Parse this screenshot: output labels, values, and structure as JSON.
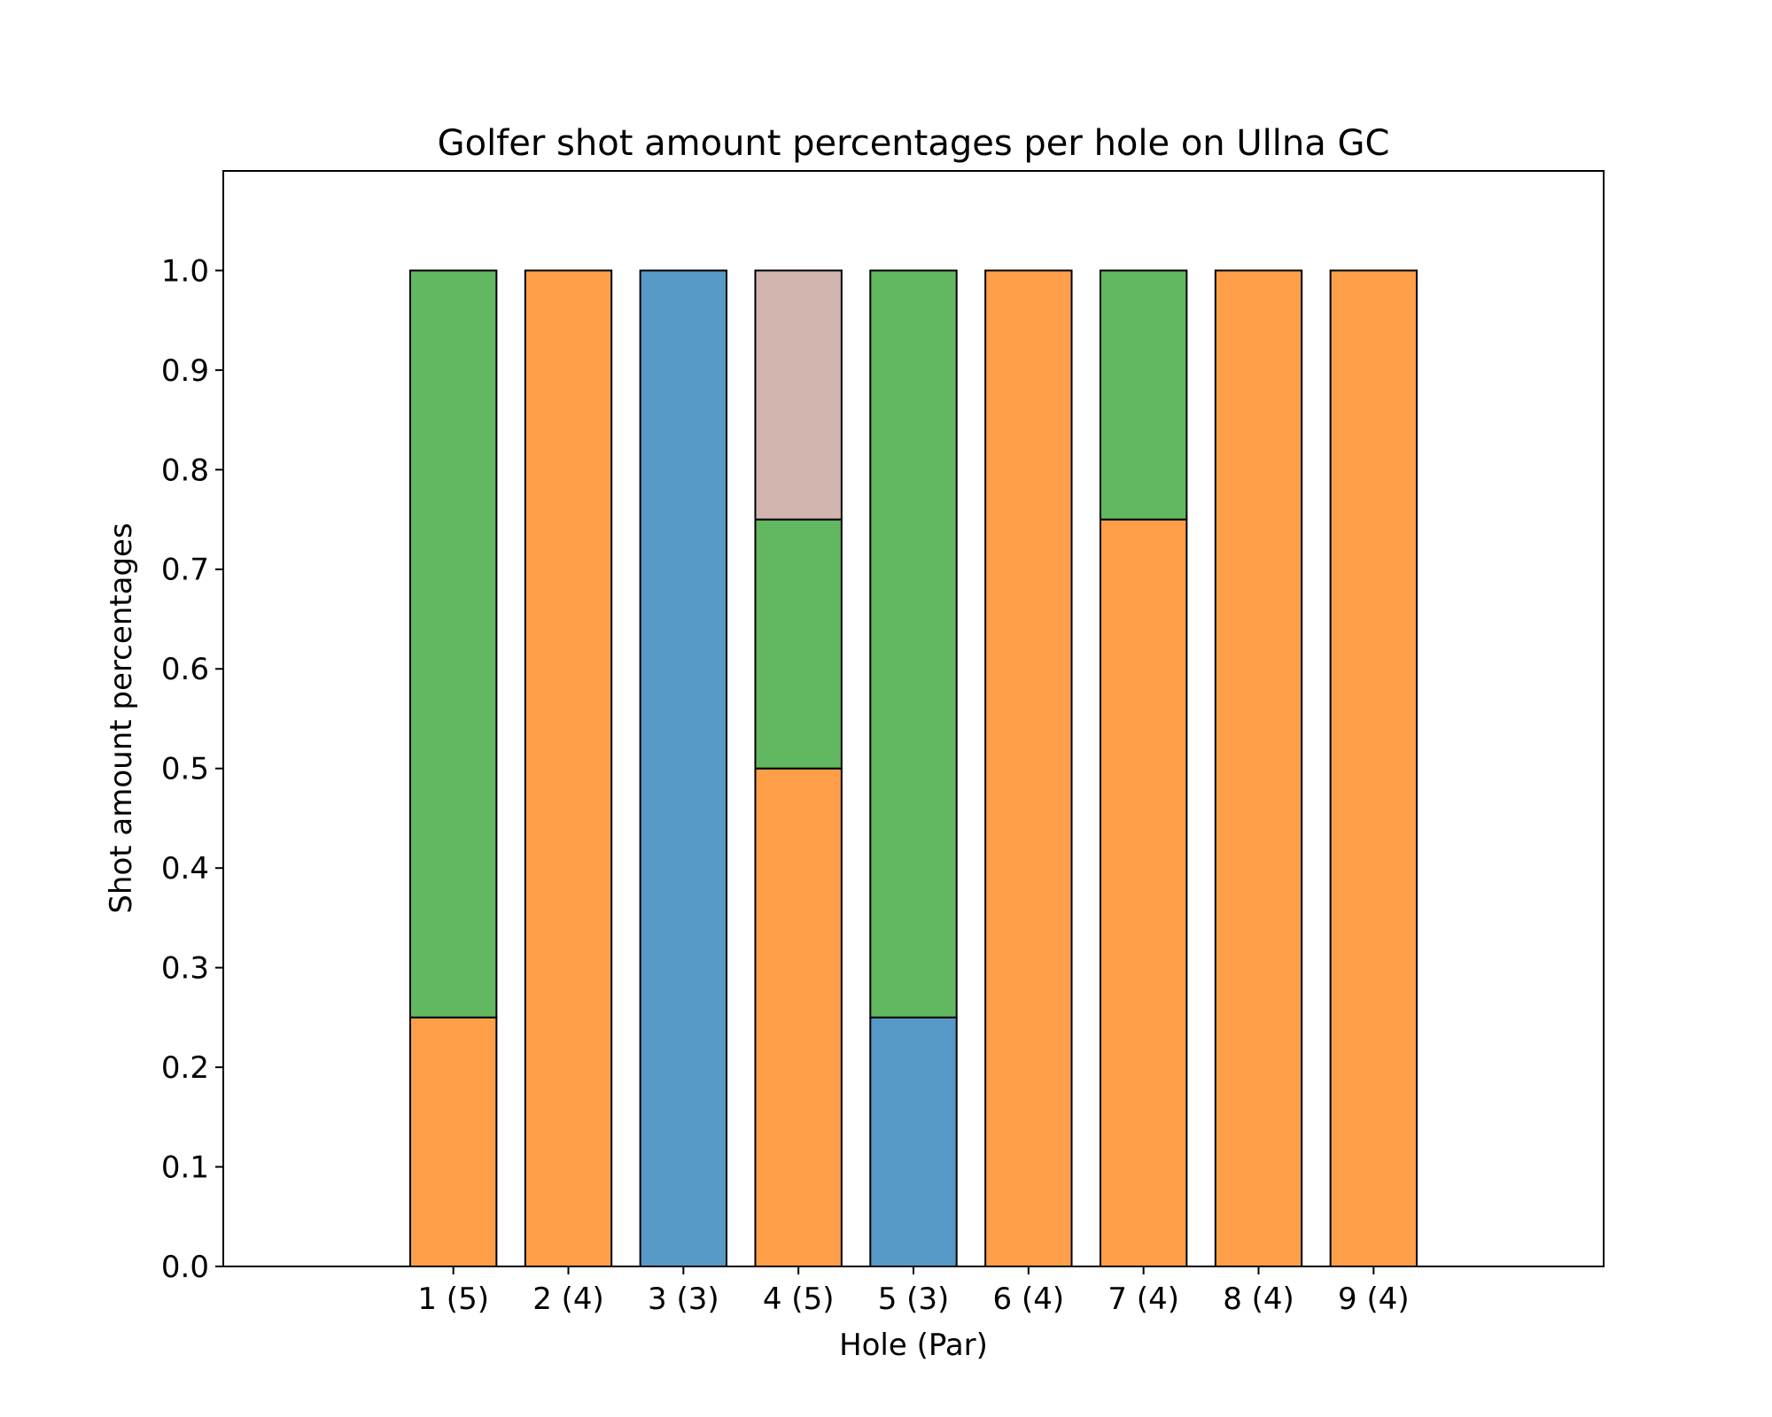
{
  "chart_data": {
    "type": "bar",
    "stacked": true,
    "title": "Golfer shot amount percentages per hole on Ullna GC",
    "xlabel": "Hole (Par)",
    "ylabel": "Shot amount percentages",
    "ylim": [
      0,
      1.1
    ],
    "yticks": [
      "0.0",
      "0.1",
      "0.2",
      "0.3",
      "0.4",
      "0.5",
      "0.6",
      "0.7",
      "0.8",
      "0.9",
      "1.0"
    ],
    "grid": false,
    "categories": [
      "1 (5)",
      "2 (4)",
      "3 (3)",
      "4 (5)",
      "5 (3)",
      "6 (4)",
      "7 (4)",
      "8 (4)",
      "9 (4)"
    ],
    "series": [
      {
        "color": "#1f77b4",
        "values": [
          0,
          0,
          1.0,
          0,
          0.25,
          0,
          0,
          0,
          0
        ]
      },
      {
        "color": "#ff7f0e",
        "values": [
          0.25,
          1.0,
          0,
          0.5,
          0,
          1.0,
          0.75,
          1.0,
          1.0
        ]
      },
      {
        "color": "#2ca02c",
        "values": [
          0.75,
          0,
          0,
          0.25,
          0.75,
          0,
          0.25,
          0,
          0
        ]
      },
      {
        "color": "#c49c94",
        "values": [
          0,
          0,
          0,
          0.25,
          0,
          0,
          0,
          0,
          0
        ]
      }
    ]
  }
}
